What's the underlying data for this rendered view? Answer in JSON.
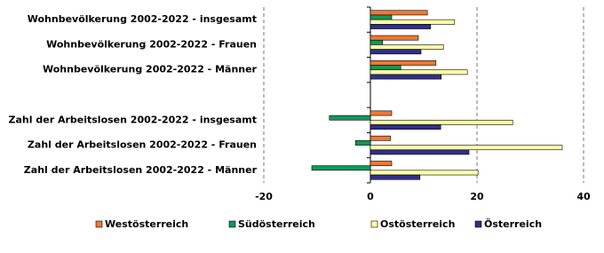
{
  "chart_data": {
    "type": "hbar",
    "categories": [
      "Wohnbevölkerung 2002-2022 - insgesamt",
      "Wohnbevölkerung 2002-2022 - Frauen",
      "Wohnbevölkerung 2002-2022 - Männer",
      null,
      "Zahl der Arbeitslosen 2002-2022 - insgesamt",
      "Zahl der Arbeitslosen 2002-2022 - Frauen",
      "Zahl der Arbeitslosen 2002-2022 - Männer"
    ],
    "series": [
      {
        "name": "Westösterreich",
        "color": "#f07830",
        "values": [
          10.7,
          9.0,
          12.3,
          null,
          4.0,
          3.8,
          4.0
        ]
      },
      {
        "name": "Südösterreich",
        "color": "#109858",
        "values": [
          4.0,
          2.3,
          5.7,
          null,
          -7.7,
          -2.8,
          -11.0
        ]
      },
      {
        "name": "Ostösterreich",
        "color": "#ffffa8",
        "values": [
          15.8,
          13.7,
          18.2,
          null,
          26.7,
          36.0,
          20.2
        ]
      },
      {
        "name": "Österreich",
        "color": "#303088",
        "values": [
          11.3,
          9.5,
          13.3,
          null,
          13.2,
          18.5,
          9.3
        ]
      }
    ],
    "xlim": [
      -20,
      40
    ],
    "xticks": [
      -20,
      0,
      20,
      40
    ],
    "grid": true,
    "legend": "bottom"
  }
}
